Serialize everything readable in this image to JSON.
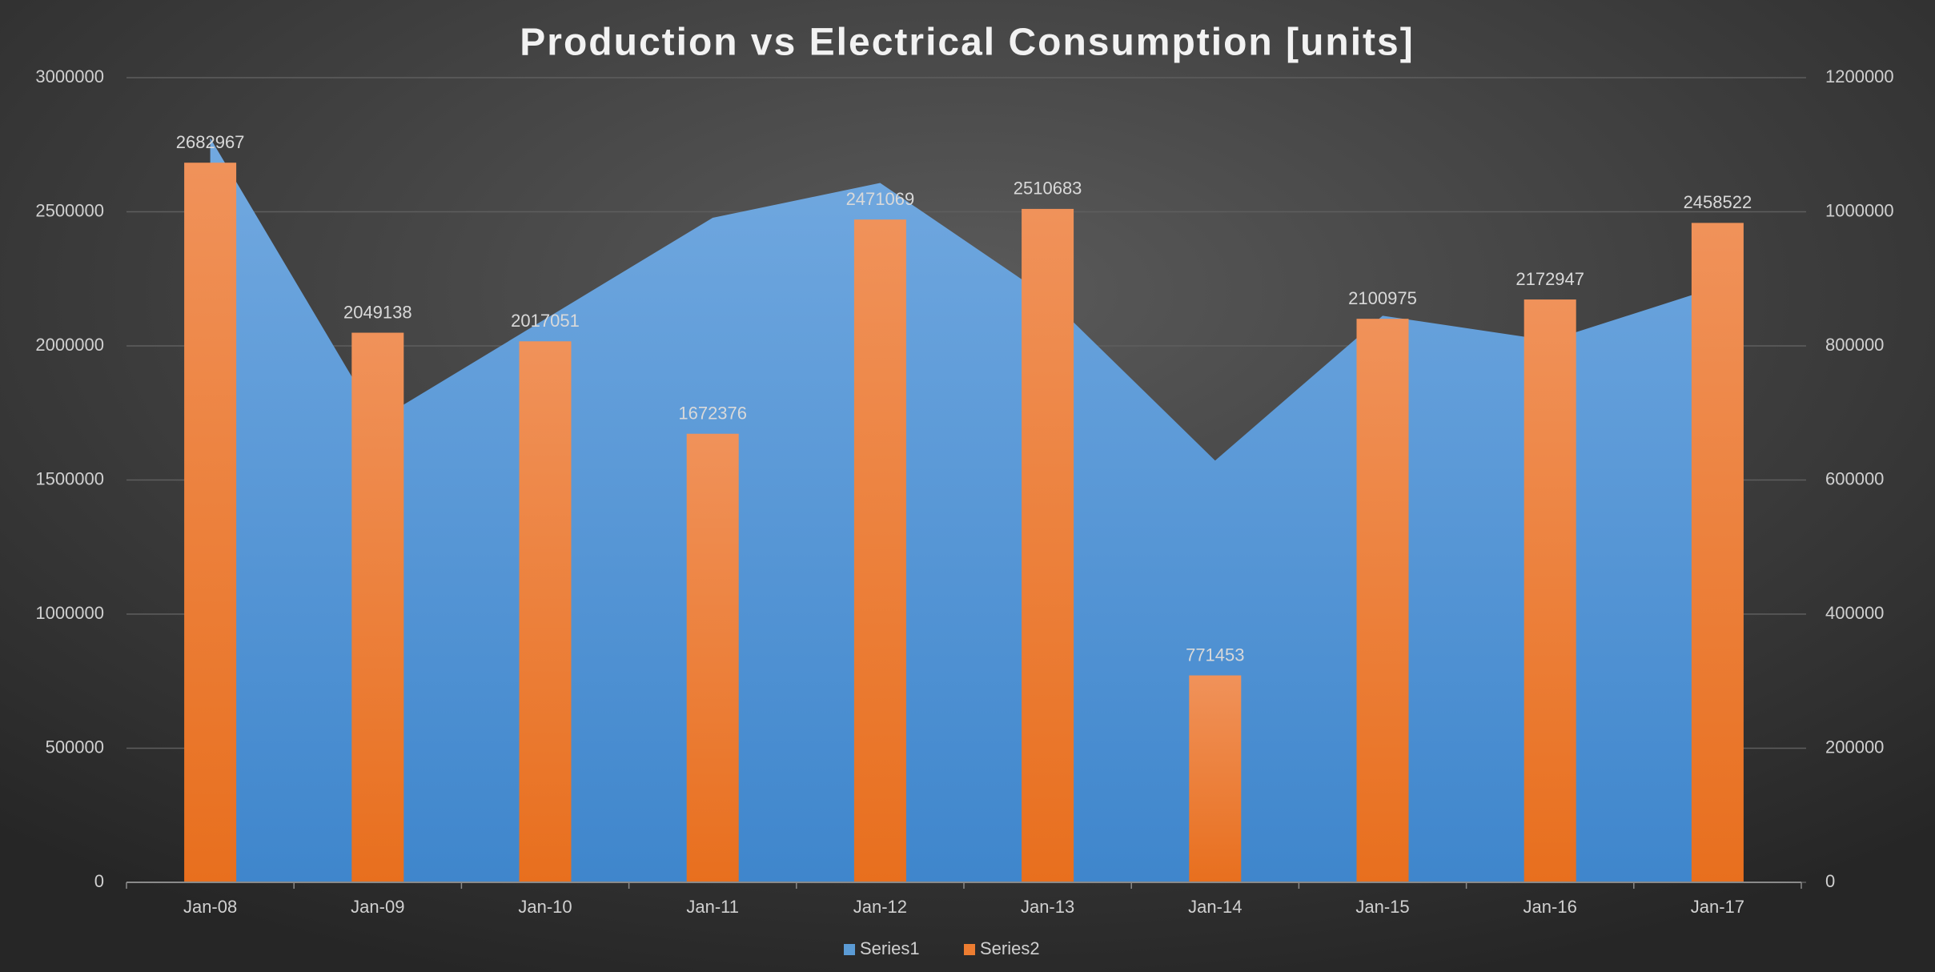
{
  "chart_data": {
    "type": "bar_area",
    "title": "Production vs Electrical Consumption [units]",
    "categories": [
      "Jan-08",
      "Jan-09",
      "Jan-10",
      "Jan-11",
      "Jan-12",
      "Jan-13",
      "Jan-14",
      "Jan-15",
      "Jan-16",
      "Jan-17"
    ],
    "series": [
      {
        "name": "Series1",
        "type": "area",
        "axis": "y2",
        "color": "#5b9bd5",
        "values": [
          1110000,
          689000,
          840000,
          991000,
          1043000,
          873000,
          629000,
          845000,
          808000,
          888000
        ]
      },
      {
        "name": "Series2",
        "type": "bar",
        "axis": "y",
        "color": "#ed7d31",
        "values": [
          2682967,
          2049138,
          2017051,
          1672376,
          2471069,
          2510683,
          771453,
          2100975,
          2172947,
          2458522
        ]
      }
    ],
    "ylim": [
      0,
      3000000
    ],
    "yticks": [
      0,
      500000,
      1000000,
      1500000,
      2000000,
      2500000,
      3000000
    ],
    "y2lim": [
      0,
      1200000
    ],
    "y2ticks": [
      0,
      200000,
      400000,
      600000,
      800000,
      1000000,
      1200000
    ],
    "grid": true,
    "legend": "bottom"
  }
}
